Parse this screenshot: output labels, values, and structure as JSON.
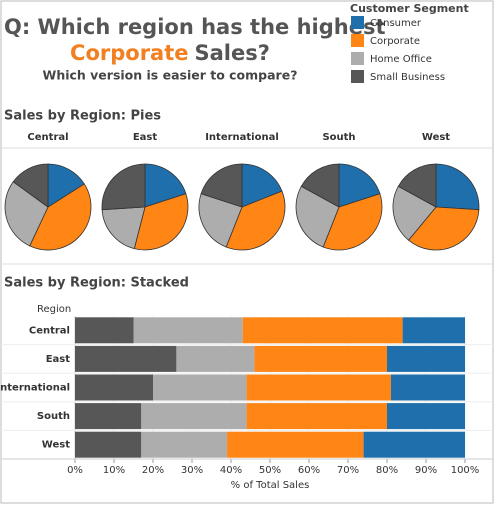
{
  "header": {
    "title_line1": "Q: Which region has the highest",
    "title_highlight": "Corporate",
    "title_rest": "Sales?",
    "subtitle": "Which version is easier to compare?",
    "legend_title": "Customer Segment"
  },
  "chart_data": [
    {
      "type": "pie",
      "title": "Sales by Region: Pies",
      "categories": [
        "Central",
        "East",
        "International",
        "South",
        "West"
      ],
      "series": [
        {
          "name": "Consumer",
          "color": "#1f6fad",
          "values": [
            16,
            20,
            19,
            20,
            26
          ]
        },
        {
          "name": "Corporate",
          "color": "#ff8514",
          "values": [
            41,
            34,
            37,
            36,
            35
          ]
        },
        {
          "name": "Home Office",
          "color": "#adadad",
          "values": [
            28,
            20,
            24,
            27,
            22
          ]
        },
        {
          "name": "Small Business",
          "color": "#575757",
          "values": [
            15,
            26,
            20,
            17,
            17
          ]
        }
      ]
    },
    {
      "type": "stacked_bar",
      "title": "Sales by Region: Stacked",
      "y_label": "Region",
      "x_label": "% of Total Sales",
      "categories": [
        "Central",
        "East",
        "International",
        "South",
        "West"
      ],
      "series": [
        {
          "name": "Consumer",
          "color": "#1f6fad",
          "values": [
            16,
            20,
            19,
            20,
            26
          ]
        },
        {
          "name": "Corporate",
          "color": "#ff8514",
          "values": [
            41,
            34,
            37,
            36,
            35
          ]
        },
        {
          "name": "Home Office",
          "color": "#adadad",
          "values": [
            28,
            20,
            24,
            27,
            22
          ]
        },
        {
          "name": "Small Business",
          "color": "#575757",
          "values": [
            15,
            26,
            20,
            17,
            17
          ]
        }
      ],
      "xlim": [
        0,
        100
      ],
      "xticks": [
        {
          "value": 0,
          "label": "0%"
        },
        {
          "value": 10,
          "label": "10%"
        },
        {
          "value": 20,
          "label": "20%"
        },
        {
          "value": 30,
          "label": "30%"
        },
        {
          "value": 40,
          "label": "40%"
        },
        {
          "value": 50,
          "label": "50%"
        },
        {
          "value": 60,
          "label": "60%"
        },
        {
          "value": 70,
          "label": "70%"
        },
        {
          "value": 80,
          "label": "80%"
        },
        {
          "value": 90,
          "label": "90%"
        },
        {
          "value": 100,
          "label": "100%"
        }
      ],
      "grid": true
    }
  ]
}
